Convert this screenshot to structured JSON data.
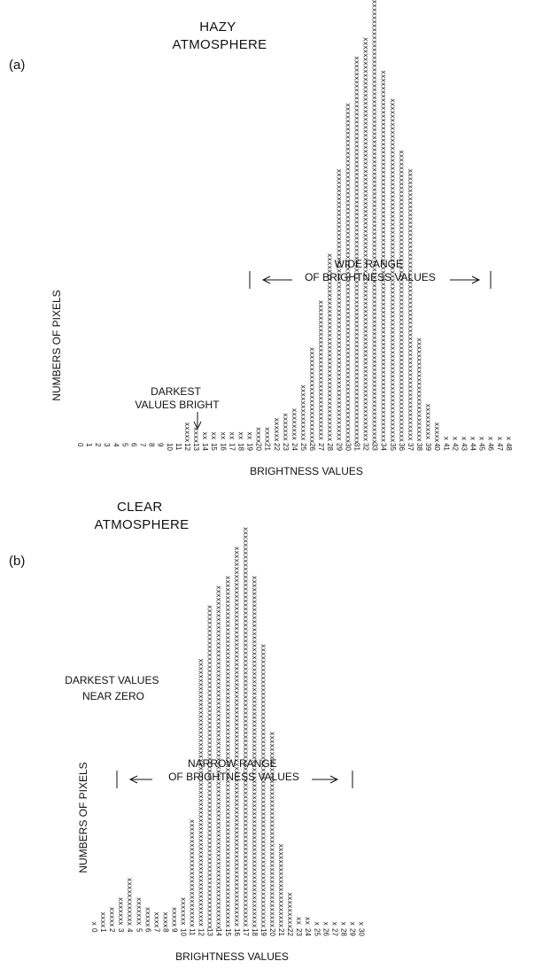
{
  "chart_data": [
    {
      "type": "bar",
      "panel_label": "(a)",
      "title": "HAZY\nATMOSPHERE",
      "xlabel": "BRIGHTNESS VALUES",
      "ylabel": "NUMBERS OF PIXELS",
      "categories": [
        "0",
        "1",
        "2",
        "3",
        "4",
        "5",
        "6",
        "7",
        "8",
        "9",
        "10",
        "11",
        "12",
        "13",
        "14",
        "15",
        "16",
        "17",
        "18",
        "19",
        "20",
        "21",
        "22",
        "23",
        "24",
        "25",
        "26",
        "27",
        "28",
        "29",
        "30",
        "31",
        "32",
        "33",
        "34",
        "35",
        "36",
        "37",
        "38",
        "39",
        "40",
        "41",
        "42",
        "43",
        "44",
        "45",
        "46",
        "47",
        "48"
      ],
      "values": [
        0,
        0,
        0,
        0,
        0,
        0,
        0,
        0,
        0,
        0,
        0,
        0,
        4,
        3,
        2,
        2,
        2,
        2,
        2,
        2,
        3,
        3,
        5,
        6,
        7,
        12,
        20,
        30,
        40,
        58,
        72,
        82,
        86,
        94,
        79,
        73,
        62,
        58,
        22,
        8,
        4,
        1,
        1,
        1,
        1,
        1,
        1,
        1,
        1
      ],
      "bar_glyph": "x",
      "annotations": [
        {
          "text": "DARKEST\nVALUES BRIGHT",
          "points_to": 12
        },
        {
          "text": "WIDE RANGE\nOF BRIGHTNESS VALUES",
          "range": [
            17,
            48
          ]
        }
      ]
    },
    {
      "type": "bar",
      "panel_label": "(b)",
      "title": "CLEAR\nATMOSPHERE",
      "xlabel": "BRIGHTNESS VALUES",
      "ylabel": "NUMBERS OF PIXELS",
      "categories": [
        "0",
        "1",
        "2",
        "3",
        "4",
        "5",
        "6",
        "7",
        "8",
        "9",
        "10",
        "11",
        "12",
        "13",
        "14",
        "15",
        "16",
        "17",
        "18",
        "19",
        "20",
        "21",
        "22",
        "23",
        "24",
        "25",
        "26",
        "27",
        "28",
        "29",
        "30"
      ],
      "values": [
        1,
        3,
        4,
        6,
        10,
        6,
        4,
        3,
        3,
        4,
        6,
        22,
        55,
        66,
        70,
        72,
        78,
        82,
        72,
        58,
        40,
        17,
        7,
        2,
        2,
        1,
        1,
        1,
        1,
        1,
        1
      ],
      "bar_glyph": "x",
      "annotations": [
        {
          "text": "DARKEST VALUES\nNEAR ZERO"
        },
        {
          "text": "NARROW RANGE\nOF BRIGHTNESS VALUES",
          "range": [
            0,
            30
          ]
        }
      ]
    }
  ]
}
